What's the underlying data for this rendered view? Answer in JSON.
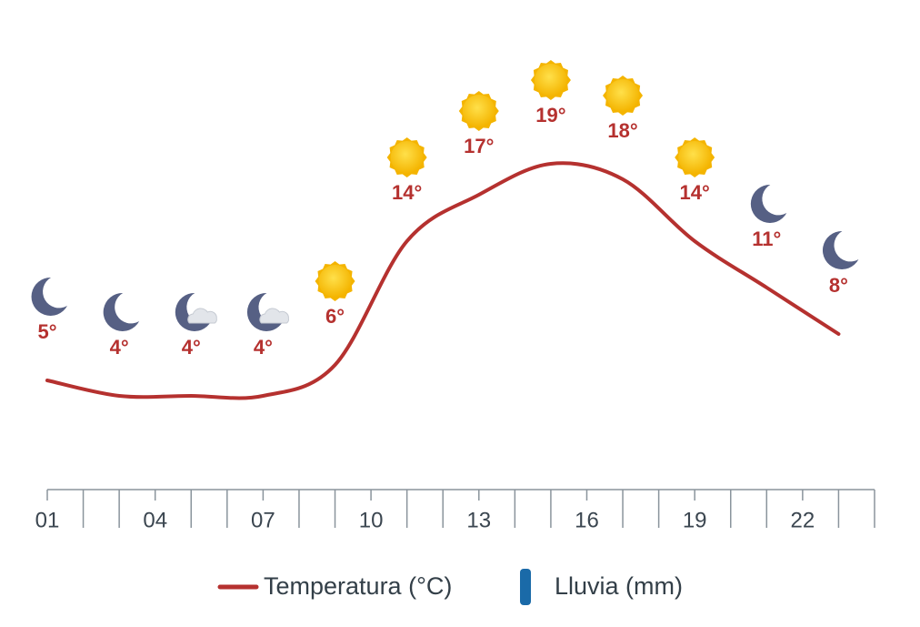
{
  "chart_data": {
    "type": "line",
    "x": [
      1,
      3,
      5,
      7,
      9,
      11,
      13,
      15,
      17,
      19,
      21,
      23
    ],
    "icons": [
      "moon",
      "moon",
      "moon-cloud",
      "moon-cloud",
      "sun",
      "sun",
      "sun",
      "sun",
      "sun",
      "sun",
      "moon",
      "moon"
    ],
    "xlim": [
      1,
      24
    ],
    "xticks": [
      {
        "value": 1,
        "label": "01"
      },
      {
        "value": 4,
        "label": "04"
      },
      {
        "value": 7,
        "label": "07"
      },
      {
        "value": 10,
        "label": "10"
      },
      {
        "value": 13,
        "label": "13"
      },
      {
        "value": 16,
        "label": "16"
      },
      {
        "value": 19,
        "label": "19"
      },
      {
        "value": 22,
        "label": "22"
      }
    ],
    "minor_xticks": [
      2,
      3,
      5,
      6,
      8,
      9,
      11,
      12,
      14,
      15,
      17,
      18,
      20,
      21,
      23,
      24
    ],
    "ylim": [
      -2,
      24
    ],
    "series": [
      {
        "name": "Temperatura (°C)",
        "color": "#b5312f",
        "values": [
          5,
          4,
          4,
          4,
          6,
          14,
          17,
          19,
          18,
          14,
          11,
          8
        ],
        "value_labels": [
          "5°",
          "4°",
          "4°",
          "4°",
          "6°",
          "14°",
          "17°",
          "19°",
          "18°",
          "14°",
          "11°",
          "8°"
        ]
      },
      {
        "name": "Lluvia (mm)",
        "color": "#1a6aa8",
        "type": "bar",
        "values": [
          0,
          0,
          0,
          0,
          0,
          0,
          0,
          0,
          0,
          0,
          0,
          0
        ]
      }
    ]
  }
}
